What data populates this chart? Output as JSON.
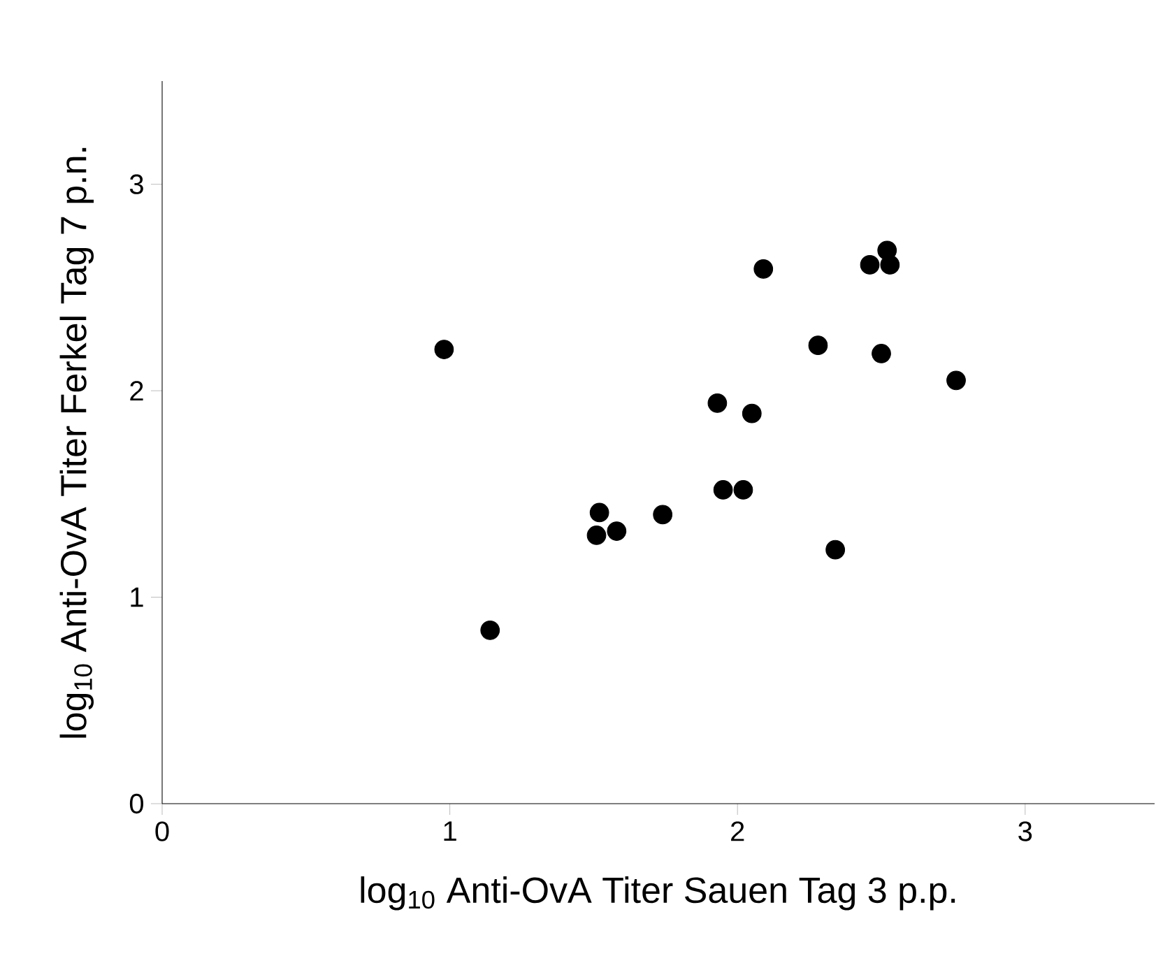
{
  "chart_data": {
    "type": "scatter",
    "xlabel": "log$_{10}$ Anti-OvA Titer Sauen Tag 3 p.p.",
    "ylabel": "log$_{10}$ Anti-OvA Titer Ferkel Tag 7 p.n.",
    "x": [
      1.14,
      0.98,
      1.52,
      1.51,
      1.58,
      1.74,
      1.95,
      2.02,
      1.93,
      2.05,
      2.09,
      2.28,
      2.34,
      2.46,
      2.52,
      2.53,
      2.5,
      2.76
    ],
    "values": [
      0.84,
      2.2,
      1.41,
      1.3,
      1.32,
      1.4,
      1.52,
      1.52,
      1.94,
      1.89,
      2.59,
      2.22,
      1.23,
      2.61,
      2.68,
      2.61,
      2.18,
      2.05
    ],
    "color": "#000000",
    "marker": "circle",
    "xlim": [
      0,
      3.45
    ],
    "ylim": [
      0,
      3.5
    ],
    "xticks": [
      0,
      1,
      2,
      3
    ],
    "yticks": [
      0,
      1,
      2,
      3
    ]
  }
}
